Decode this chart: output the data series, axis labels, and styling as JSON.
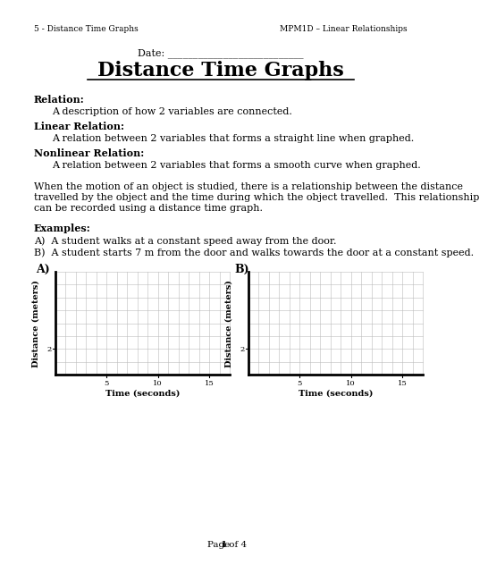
{
  "header_left": "5 - Distance Time Graphs",
  "header_right": "MPM1D – Linear Relationships",
  "date_label": "Date: ___________________________",
  "title": "Distance Time Graphs",
  "relation_label": "Relation:",
  "relation_text": "A description of how 2 variables are connected.",
  "linear_label": "Linear Relation:",
  "linear_text": "A relation between 2 variables that forms a straight line when graphed.",
  "nonlinear_label": "Nonlinear Relation:",
  "nonlinear_text": "A relation between 2 variables that forms a smooth curve when graphed.",
  "paragraph_lines": [
    "When the motion of an object is studied, there is a relationship between the distance",
    "travelled by the object and the time during which the object travelled.  This relationship",
    "can be recorded using a distance time graph."
  ],
  "examples_label": "Examples:",
  "example_a": "A)  A student walks at a constant speed away from the door.",
  "example_b": "B)  A student starts 7 m from the door and walks towards the door at a constant speed.",
  "graph_a_label": "A)",
  "graph_b_label": "B)",
  "xlabel": "Time (seconds)",
  "ylabel": "Distance (meters)",
  "x_ticks": [
    5,
    10,
    15
  ],
  "y_tick_val": 2,
  "x_max": 17,
  "y_max": 8,
  "footer_text": "Page ",
  "footer_bold": "1",
  "footer_end": " of 4",
  "bg_color": "#ffffff",
  "text_color": "#000000",
  "grid_color": "#bbbbbb",
  "line_color": "#000000"
}
